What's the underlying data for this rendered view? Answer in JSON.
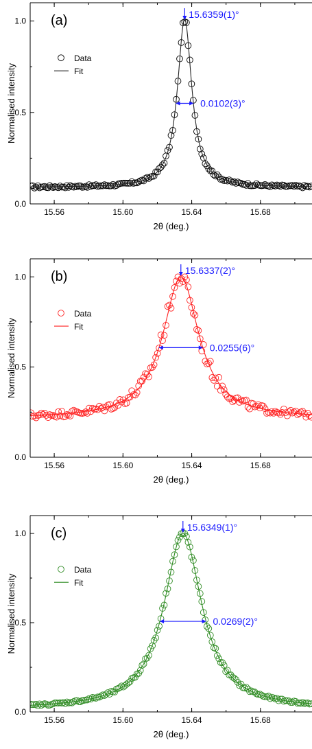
{
  "colors": {
    "a": "#000000",
    "b": "#ff2020",
    "c": "#2e8b22",
    "annotation": "#1a1aff",
    "fit_a": "#222222"
  },
  "chart_data": [
    {
      "type": "scatter",
      "panel_label": "(a)",
      "xlabel": "2θ (deg.)",
      "ylabel": "Normalised intensity",
      "xlim": [
        15.546,
        15.71
      ],
      "ylim": [
        0.0,
        1.1
      ],
      "xticks": [
        "15.56",
        "15.60",
        "15.64",
        "15.68"
      ],
      "yticks": [
        "0.0",
        "0.5",
        "1.0"
      ],
      "legend": {
        "position": "left",
        "data_label": "Data",
        "fit_label": "Fit"
      },
      "peak_center": 15.6359,
      "peak_label": "15.6359(1)°",
      "fwhm": 0.0102,
      "fwhm_label": "0.0102(3)°",
      "model": {
        "baseline": 0.09,
        "amplitude": 0.92,
        "noise": 0.007,
        "scatter_sigma": 0.012
      },
      "color_key": "a"
    },
    {
      "type": "scatter",
      "panel_label": "(b)",
      "xlabel": "2θ (deg.)",
      "ylabel": "Normalised intensity",
      "xlim": [
        15.546,
        15.71
      ],
      "ylim": [
        0.0,
        1.1
      ],
      "xticks": [
        "15.56",
        "15.60",
        "15.64",
        "15.68"
      ],
      "yticks": [
        "0.0",
        "0.5",
        "1.0"
      ],
      "legend": {
        "position": "left",
        "data_label": "Data",
        "fit_label": "Fit"
      },
      "peak_center": 15.6337,
      "peak_label": "15.6337(2)°",
      "fwhm": 0.0255,
      "fwhm_label": "0.0255(6)°",
      "model": {
        "baseline": 0.215,
        "amplitude": 0.785,
        "noise": 0.018,
        "scatter_sigma": 0.03
      },
      "color_key": "b"
    },
    {
      "type": "scatter",
      "panel_label": "(c)",
      "xlabel": "2θ (deg.)",
      "ylabel": "Normalised intensity",
      "xlim": [
        15.546,
        15.71
      ],
      "ylim": [
        0.0,
        1.1
      ],
      "xticks": [
        "15.56",
        "15.60",
        "15.64",
        "15.68"
      ],
      "yticks": [
        "0.0",
        "0.5",
        "1.0"
      ],
      "legend": {
        "position": "left",
        "data_label": "Data",
        "fit_label": "Fit"
      },
      "peak_center": 15.6349,
      "peak_label": "15.6349(1)°",
      "fwhm": 0.0269,
      "fwhm_label": "0.0269(2)°",
      "model": {
        "baseline": 0.015,
        "amplitude": 0.985,
        "noise": 0.006,
        "scatter_sigma": 0.01
      },
      "color_key": "c"
    }
  ]
}
